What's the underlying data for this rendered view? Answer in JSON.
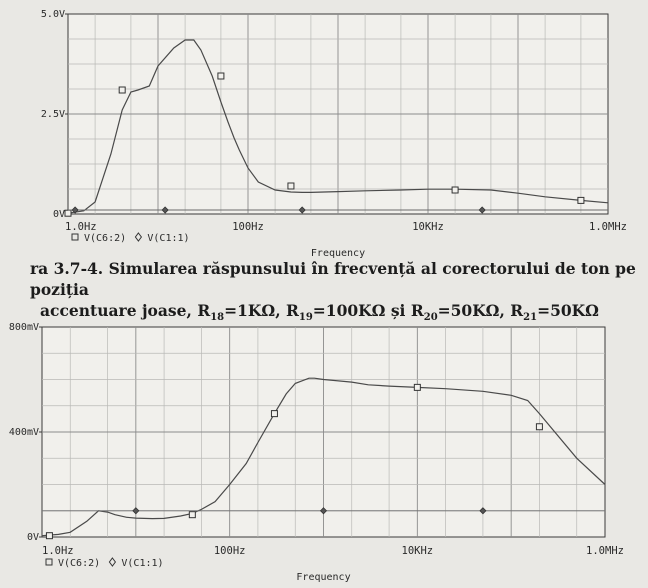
{
  "caption": {
    "prefix": "ra ",
    "figure_number": "3.7-4.",
    "line1": "Simularea răspunsului în frecvență al corectorului de ton pe poziția",
    "line2_start": "accentuare joase, ",
    "r18_sub": "18",
    "r18_val": "=1KΩ",
    "r19_sub": "19",
    "r19_val": "=100KΩ",
    "and_word": "și",
    "r20_sub": "20",
    "r20_val": "=50KΩ",
    "r21_sub": "21",
    "r21_val": "=50KΩ"
  },
  "chart_data": [
    {
      "type": "line",
      "x_scale": "log",
      "xlim": [
        1,
        1000000
      ],
      "ylim": [
        0,
        5.0
      ],
      "x_tick_labels": [
        "1.0Hz",
        "100Hz",
        "10KHz",
        "1.0MHz"
      ],
      "x_tick_values": [
        1,
        100,
        10000,
        1000000
      ],
      "y_tick_labels": [
        "0V",
        "2.5V",
        "5.0V"
      ],
      "y_tick_values": [
        0,
        2.5,
        5.0
      ],
      "xlabel": "Frequency",
      "legend": "bottom-left",
      "grid": true,
      "series": [
        {
          "name": "V(C6:2)",
          "marker": "square",
          "x": [
            1,
            1.5,
            2,
            3,
            4,
            5,
            6,
            8,
            10,
            15,
            20,
            25,
            30,
            40,
            50,
            60,
            70,
            80,
            100,
            130,
            200,
            300,
            400,
            500,
            700,
            1000,
            2000,
            5000,
            10000,
            20000,
            50000,
            100000,
            200000,
            500000,
            1000000
          ],
          "y": [
            0.02,
            0.08,
            0.3,
            1.5,
            2.6,
            3.05,
            3.1,
            3.2,
            3.7,
            4.15,
            4.35,
            4.35,
            4.1,
            3.45,
            2.8,
            2.3,
            1.9,
            1.6,
            1.15,
            0.8,
            0.6,
            0.55,
            0.54,
            0.54,
            0.55,
            0.56,
            0.58,
            0.6,
            0.62,
            0.62,
            0.6,
            0.52,
            0.43,
            0.34,
            0.28
          ],
          "marker_x": [
            1,
            4,
            50,
            300,
            20000,
            500000
          ],
          "marker_y": [
            0.02,
            3.1,
            3.45,
            0.7,
            0.6,
            0.34
          ]
        },
        {
          "name": "V(C1:1)",
          "marker": "diamond",
          "x": [
            1,
            1000000
          ],
          "y": [
            0.1,
            0.1
          ],
          "marker_x": [
            1.2,
            12,
            400,
            40000
          ],
          "marker_y": [
            0.1,
            0.1,
            0.1,
            0.1
          ]
        }
      ]
    },
    {
      "type": "line",
      "x_scale": "log",
      "xlim": [
        1,
        1000000
      ],
      "ylim": [
        0,
        800
      ],
      "x_tick_labels": [
        "1.0Hz",
        "100Hz",
        "10KHz",
        "1.0MHz"
      ],
      "x_tick_values": [
        1,
        100,
        10000,
        1000000
      ],
      "y_tick_labels": [
        "0V",
        "400mV",
        "800mV"
      ],
      "y_tick_values": [
        0,
        400,
        800
      ],
      "xlabel": "Frequency",
      "legend": "bottom-left",
      "grid": true,
      "series": [
        {
          "name": "V(C6:2)",
          "marker": "square",
          "x": [
            1,
            1.5,
            2,
            3,
            4,
            5,
            6,
            8,
            10,
            15,
            20,
            30,
            40,
            50,
            70,
            100,
            150,
            200,
            300,
            400,
            500,
            700,
            800,
            1000,
            2000,
            3000,
            5000,
            10000,
            20000,
            50000,
            100000,
            150000,
            200000,
            500000,
            1000000
          ],
          "y": [
            5,
            10,
            18,
            60,
            100,
            95,
            85,
            75,
            72,
            70,
            71,
            80,
            90,
            105,
            135,
            200,
            280,
            360,
            470,
            545,
            585,
            605,
            605,
            600,
            590,
            580,
            575,
            570,
            565,
            555,
            540,
            520,
            470,
            300,
            200
          ],
          "marker_x": [
            1.2,
            40,
            300,
            10000,
            200000
          ],
          "marker_y": [
            5,
            85,
            470,
            570,
            420
          ]
        },
        {
          "name": "V(C1:1)",
          "marker": "diamond",
          "x": [
            1,
            1000000
          ],
          "y": [
            100,
            100
          ],
          "marker_x": [
            10,
            1000,
            50000
          ],
          "marker_y": [
            100,
            100,
            100
          ]
        }
      ]
    }
  ]
}
